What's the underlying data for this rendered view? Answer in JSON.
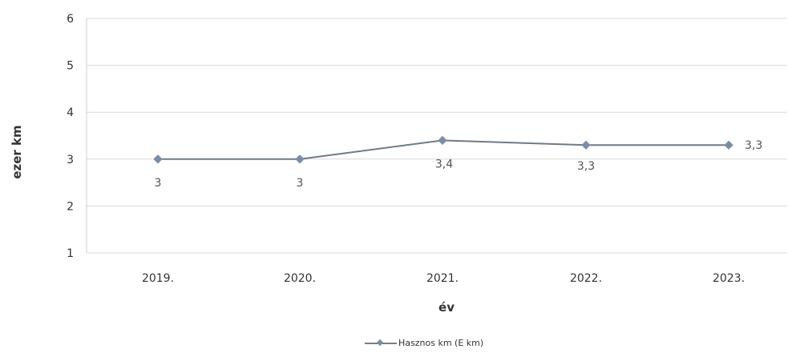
{
  "chart_data": {
    "type": "line",
    "categories": [
      "2019.",
      "2020.",
      "2021.",
      "2022.",
      "2023."
    ],
    "series": [
      {
        "name": "Hasznos km (E km)",
        "values": [
          3,
          3,
          3.4,
          3.3,
          3.3
        ],
        "labels": [
          "3",
          "3",
          "3,4",
          "3,3",
          "3,3"
        ],
        "color": "#6f7a88"
      }
    ],
    "xlabel": "év",
    "ylabel": "ezer km",
    "ylim": [
      1,
      6
    ],
    "yticks": [
      "1",
      "2",
      "3",
      "4",
      "5",
      "6"
    ],
    "grid": true,
    "legend_position": "bottom"
  }
}
